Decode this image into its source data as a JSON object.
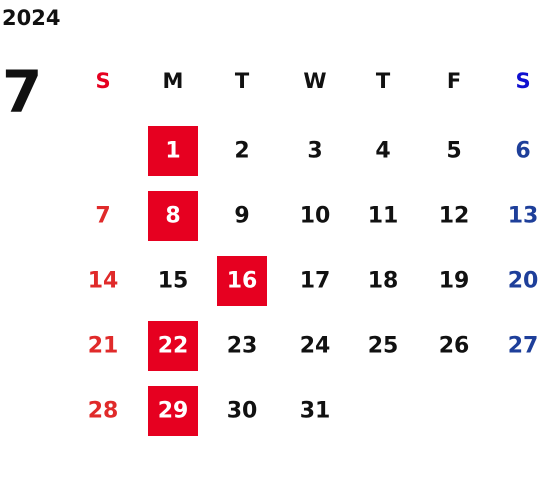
{
  "year": "2024",
  "month": "7",
  "weekdays": [
    "S",
    "M",
    "T",
    "W",
    "T",
    "F",
    "S"
  ],
  "weeks": [
    [
      {
        "day": 1,
        "highlight": true
      },
      {
        "day": 2
      },
      {
        "day": 3
      },
      {
        "day": 4
      },
      {
        "day": 5
      },
      {
        "day": 6
      }
    ],
    [
      {
        "day": 7
      },
      {
        "day": 8,
        "highlight": true
      },
      {
        "day": 9
      },
      {
        "day": 10
      },
      {
        "day": 11
      },
      {
        "day": 12
      },
      {
        "day": 13
      }
    ],
    [
      {
        "day": 14
      },
      {
        "day": 15
      },
      {
        "day": 16,
        "highlight": true
      },
      {
        "day": 17
      },
      {
        "day": 18
      },
      {
        "day": 19
      },
      {
        "day": 20
      }
    ],
    [
      {
        "day": 21
      },
      {
        "day": 22,
        "highlight": true
      },
      {
        "day": 23
      },
      {
        "day": 24
      },
      {
        "day": 25
      },
      {
        "day": 26
      },
      {
        "day": 27
      }
    ],
    [
      {
        "day": 28
      },
      {
        "day": 29,
        "highlight": true
      },
      {
        "day": 30
      },
      {
        "day": 31
      }
    ]
  ]
}
